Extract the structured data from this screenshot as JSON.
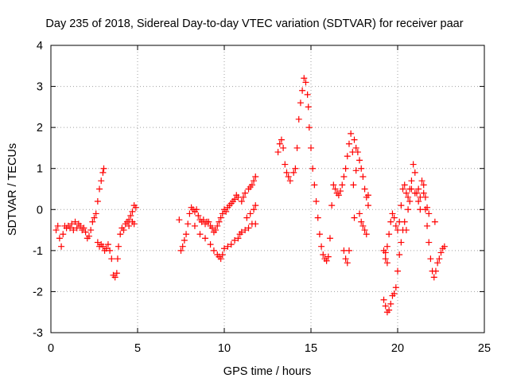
{
  "chart_data": {
    "type": "scatter",
    "title": "Day 235 of 2018, Sidereal Day-to-day VTEC variation (SDTVAR) for receiver paar",
    "xlabel": "GPS time / hours",
    "ylabel": "SDTVAR / TECUs",
    "xlim": [
      0,
      25
    ],
    "ylim": [
      -3,
      4
    ],
    "xticks": [
      0,
      5,
      10,
      15,
      20,
      25
    ],
    "yticks": [
      -3,
      -2,
      -1,
      0,
      1,
      2,
      3,
      4
    ],
    "xtick_labels": [
      "0",
      "5",
      "10",
      "15",
      "20",
      "25"
    ],
    "ytick_labels": [
      "-3",
      "-2",
      "-1",
      "0",
      "1",
      "2",
      "3",
      "4"
    ],
    "grid": true,
    "marker": "+",
    "series": [
      {
        "name": "SDTVAR",
        "color": "#ff0000",
        "points": [
          [
            0.3,
            -0.5
          ],
          [
            0.4,
            -0.4
          ],
          [
            0.5,
            -0.7
          ],
          [
            0.6,
            -0.9
          ],
          [
            0.7,
            -0.6
          ],
          [
            0.8,
            -0.4
          ],
          [
            0.9,
            -0.45
          ],
          [
            1.0,
            -0.4
          ],
          [
            1.1,
            -0.45
          ],
          [
            1.2,
            -0.35
          ],
          [
            1.3,
            -0.5
          ],
          [
            1.4,
            -0.3
          ],
          [
            1.5,
            -0.45
          ],
          [
            1.6,
            -0.35
          ],
          [
            1.7,
            -0.4
          ],
          [
            1.8,
            -0.5
          ],
          [
            1.9,
            -0.45
          ],
          [
            2.0,
            -0.55
          ],
          [
            2.1,
            -0.7
          ],
          [
            2.2,
            -0.65
          ],
          [
            2.3,
            -0.5
          ],
          [
            2.4,
            -0.3
          ],
          [
            2.5,
            -0.2
          ],
          [
            2.6,
            -0.1
          ],
          [
            2.7,
            0.2
          ],
          [
            2.8,
            0.5
          ],
          [
            2.9,
            0.7
          ],
          [
            3.0,
            0.9
          ],
          [
            3.05,
            1.0
          ],
          [
            2.7,
            -0.8
          ],
          [
            2.8,
            -0.9
          ],
          [
            2.9,
            -0.85
          ],
          [
            3.0,
            -0.9
          ],
          [
            3.1,
            -1.0
          ],
          [
            3.2,
            -0.95
          ],
          [
            3.3,
            -0.85
          ],
          [
            3.4,
            -1.0
          ],
          [
            3.5,
            -1.2
          ],
          [
            3.6,
            -1.6
          ],
          [
            3.7,
            -1.65
          ],
          [
            3.8,
            -1.55
          ],
          [
            3.85,
            -1.2
          ],
          [
            3.9,
            -0.9
          ],
          [
            4.0,
            -0.6
          ],
          [
            4.1,
            -0.45
          ],
          [
            4.2,
            -0.5
          ],
          [
            4.3,
            -0.35
          ],
          [
            4.4,
            -0.3
          ],
          [
            4.5,
            -0.25
          ],
          [
            4.6,
            -0.15
          ],
          [
            4.7,
            -0.05
          ],
          [
            4.8,
            0.1
          ],
          [
            4.9,
            0.05
          ],
          [
            4.5,
            -0.4
          ],
          [
            4.7,
            -0.3
          ],
          [
            4.8,
            -0.35
          ],
          [
            7.5,
            -1.0
          ],
          [
            7.6,
            -0.9
          ],
          [
            7.7,
            -0.75
          ],
          [
            7.8,
            -0.6
          ],
          [
            7.9,
            -0.35
          ],
          [
            8.0,
            -0.1
          ],
          [
            8.1,
            0.05
          ],
          [
            8.2,
            0.0
          ],
          [
            8.3,
            -0.05
          ],
          [
            8.4,
            0.0
          ],
          [
            8.5,
            -0.15
          ],
          [
            8.6,
            -0.25
          ],
          [
            8.7,
            -0.3
          ],
          [
            8.8,
            -0.25
          ],
          [
            8.9,
            -0.35
          ],
          [
            9.0,
            -0.3
          ],
          [
            9.1,
            -0.3
          ],
          [
            9.2,
            -0.4
          ],
          [
            9.3,
            -0.45
          ],
          [
            9.4,
            -0.55
          ],
          [
            9.5,
            -0.5
          ],
          [
            9.6,
            -0.4
          ],
          [
            9.7,
            -0.3
          ],
          [
            9.8,
            -0.2
          ],
          [
            9.9,
            -0.1
          ],
          [
            10.0,
            0.0
          ],
          [
            10.1,
            -0.05
          ],
          [
            10.2,
            0.05
          ],
          [
            10.3,
            0.1
          ],
          [
            10.4,
            0.15
          ],
          [
            10.5,
            0.2
          ],
          [
            10.6,
            0.25
          ],
          [
            10.7,
            0.35
          ],
          [
            10.8,
            0.3
          ],
          [
            11.0,
            0.2
          ],
          [
            11.1,
            0.3
          ],
          [
            11.2,
            0.4
          ],
          [
            11.4,
            0.5
          ],
          [
            11.5,
            0.55
          ],
          [
            11.6,
            0.6
          ],
          [
            11.7,
            0.7
          ],
          [
            11.8,
            0.8
          ],
          [
            7.4,
            -0.25
          ],
          [
            8.3,
            -0.4
          ],
          [
            8.6,
            -0.6
          ],
          [
            8.9,
            -0.7
          ],
          [
            9.2,
            -0.85
          ],
          [
            9.4,
            -1.0
          ],
          [
            9.6,
            -1.1
          ],
          [
            9.7,
            -1.15
          ],
          [
            9.8,
            -1.2
          ],
          [
            9.9,
            -1.1
          ],
          [
            10.0,
            -0.95
          ],
          [
            10.2,
            -0.9
          ],
          [
            10.4,
            -0.85
          ],
          [
            10.6,
            -0.75
          ],
          [
            10.8,
            -0.7
          ],
          [
            10.9,
            -0.6
          ],
          [
            11.0,
            -0.55
          ],
          [
            11.2,
            -0.5
          ],
          [
            11.4,
            -0.45
          ],
          [
            11.6,
            -0.35
          ],
          [
            11.8,
            -0.35
          ],
          [
            11.3,
            -0.2
          ],
          [
            11.5,
            -0.1
          ],
          [
            11.7,
            0.0
          ],
          [
            11.8,
            0.1
          ],
          [
            13.1,
            1.4
          ],
          [
            13.2,
            1.6
          ],
          [
            13.3,
            1.7
          ],
          [
            13.4,
            1.5
          ],
          [
            13.5,
            1.1
          ],
          [
            13.6,
            0.9
          ],
          [
            13.7,
            0.8
          ],
          [
            13.8,
            0.7
          ],
          [
            14.0,
            0.9
          ],
          [
            14.1,
            1.0
          ],
          [
            14.2,
            1.5
          ],
          [
            14.3,
            2.2
          ],
          [
            14.4,
            2.6
          ],
          [
            14.5,
            2.9
          ],
          [
            14.6,
            3.2
          ],
          [
            14.7,
            3.1
          ],
          [
            14.8,
            2.8
          ],
          [
            14.85,
            2.5
          ],
          [
            14.9,
            2.0
          ],
          [
            15.0,
            1.5
          ],
          [
            15.1,
            1.0
          ],
          [
            15.2,
            0.6
          ],
          [
            15.3,
            0.2
          ],
          [
            15.4,
            -0.2
          ],
          [
            15.5,
            -0.6
          ],
          [
            15.6,
            -0.9
          ],
          [
            15.7,
            -1.1
          ],
          [
            15.8,
            -1.2
          ],
          [
            15.9,
            -1.25
          ],
          [
            16.0,
            -1.15
          ],
          [
            16.1,
            -0.7
          ],
          [
            16.2,
            0.1
          ],
          [
            16.3,
            0.6
          ],
          [
            16.4,
            0.5
          ],
          [
            16.5,
            0.4
          ],
          [
            16.6,
            0.35
          ],
          [
            16.7,
            0.45
          ],
          [
            16.8,
            0.6
          ],
          [
            16.9,
            0.8
          ],
          [
            17.0,
            1.0
          ],
          [
            17.1,
            1.3
          ],
          [
            17.2,
            1.6
          ],
          [
            17.3,
            1.85
          ],
          [
            17.4,
            1.4
          ],
          [
            17.45,
            0.6
          ],
          [
            17.5,
            -0.2
          ],
          [
            16.9,
            -1.0
          ],
          [
            17.0,
            -1.2
          ],
          [
            17.1,
            -1.3
          ],
          [
            17.2,
            -1.0
          ],
          [
            17.5,
            1.7
          ],
          [
            17.6,
            1.5
          ],
          [
            17.7,
            1.4
          ],
          [
            17.8,
            1.2
          ],
          [
            17.9,
            1.0
          ],
          [
            18.0,
            0.8
          ],
          [
            18.1,
            0.5
          ],
          [
            18.2,
            0.3
          ],
          [
            18.3,
            0.1
          ],
          [
            17.6,
            0.95
          ],
          [
            17.8,
            -0.1
          ],
          [
            17.9,
            -0.3
          ],
          [
            18.0,
            -0.4
          ],
          [
            18.1,
            -0.5
          ],
          [
            18.2,
            -0.6
          ],
          [
            18.3,
            0.35
          ],
          [
            19.2,
            -1.0
          ],
          [
            19.3,
            -1.05
          ],
          [
            19.4,
            -0.9
          ],
          [
            19.5,
            -0.6
          ],
          [
            19.6,
            -0.3
          ],
          [
            19.7,
            -0.1
          ],
          [
            19.8,
            -0.2
          ],
          [
            19.9,
            -0.4
          ],
          [
            20.0,
            -0.5
          ],
          [
            20.1,
            -0.3
          ],
          [
            20.2,
            0.1
          ],
          [
            20.3,
            0.5
          ],
          [
            20.4,
            0.6
          ],
          [
            20.5,
            0.4
          ],
          [
            20.6,
            0.3
          ],
          [
            20.7,
            0.2
          ],
          [
            20.8,
            0.5
          ],
          [
            20.9,
            1.1
          ],
          [
            21.0,
            0.9
          ],
          [
            21.1,
            0.4
          ],
          [
            21.2,
            0.2
          ],
          [
            21.3,
            0.3
          ],
          [
            21.4,
            0.7
          ],
          [
            21.5,
            0.4
          ],
          [
            21.6,
            0.0
          ],
          [
            21.7,
            -0.4
          ],
          [
            21.8,
            -0.8
          ],
          [
            21.9,
            -1.2
          ],
          [
            22.0,
            -1.5
          ],
          [
            22.1,
            -1.65
          ],
          [
            22.2,
            -1.5
          ],
          [
            22.3,
            -1.3
          ],
          [
            22.4,
            -1.2
          ],
          [
            22.5,
            -1.05
          ],
          [
            22.6,
            -0.95
          ],
          [
            22.7,
            -0.9
          ],
          [
            22.15,
            -0.3
          ],
          [
            19.2,
            -2.2
          ],
          [
            19.3,
            -2.35
          ],
          [
            19.4,
            -2.5
          ],
          [
            19.5,
            -2.45
          ],
          [
            19.6,
            -2.3
          ],
          [
            19.7,
            -2.1
          ],
          [
            19.8,
            -2.05
          ],
          [
            19.9,
            -1.9
          ],
          [
            20.0,
            -1.5
          ],
          [
            20.1,
            -1.1
          ],
          [
            20.2,
            -0.8
          ],
          [
            20.3,
            -0.5
          ],
          [
            20.4,
            -0.3
          ],
          [
            20.5,
            -0.5
          ],
          [
            20.6,
            0.0
          ],
          [
            20.7,
            0.5
          ],
          [
            20.8,
            0.7
          ],
          [
            21.0,
            0.4
          ],
          [
            21.2,
            0.5
          ],
          [
            21.3,
            0.0
          ],
          [
            21.5,
            0.6
          ],
          [
            21.6,
            0.3
          ],
          [
            21.7,
            0.05
          ],
          [
            21.8,
            -0.1
          ],
          [
            19.4,
            -1.3
          ],
          [
            19.3,
            -1.2
          ]
        ]
      }
    ]
  }
}
